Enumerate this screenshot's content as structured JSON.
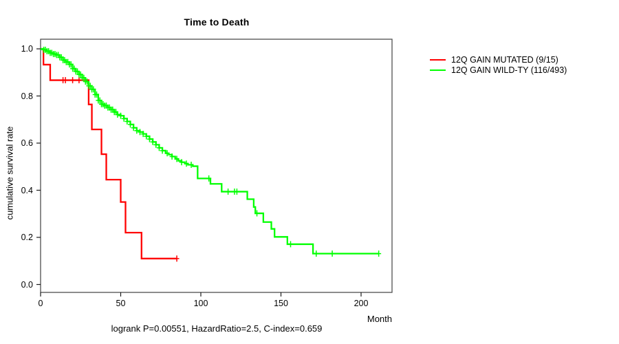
{
  "window": {
    "title": "Time to Death survival plot"
  },
  "header": {
    "title": "Time to Death"
  },
  "axes": {
    "y_label": "cumulative survival rate",
    "x_label": "Month"
  },
  "legend": [
    {
      "label": "12Q GAIN MUTATED (9/15)",
      "color": "#ff0000"
    },
    {
      "label": "12Q GAIN WILD-TY (116/493)",
      "color": "#00ff00"
    }
  ],
  "footer": {
    "stats_line": "logrank P=0.00551, HazardRatio=2.5, C-index=0.659"
  },
  "colors": {
    "mutated": "#ff0000",
    "wildtype": "#00ff00",
    "box": "#4d4d4d",
    "tick": "#1a1a1a",
    "text": "#000000",
    "background": "#ffffff"
  },
  "chart_data": {
    "type": "line",
    "subtype": "kaplan-meier-step",
    "title": "Time to Death",
    "xlabel": "Month",
    "ylabel": "cumulative survival rate",
    "xlim": [
      0,
      220
    ],
    "ylim": [
      0.0,
      1.0
    ],
    "grid": false,
    "legend_position": "right",
    "annotation": "logrank P=0.00551, HazardRatio=2.5, C-index=0.659",
    "x_ticks": [
      {
        "label": "0",
        "month": 0
      },
      {
        "label": "50",
        "month": 50
      },
      {
        "label": "100",
        "month": 100
      },
      {
        "label": "150",
        "month": 150
      },
      {
        "label": "200",
        "month": 200
      }
    ],
    "y_ticks": [
      {
        "label": "0.0",
        "value": 0.0
      },
      {
        "label": "0.2",
        "value": 0.2
      },
      {
        "label": "0.4",
        "value": 0.4
      },
      {
        "label": "0.6",
        "value": 0.6
      },
      {
        "label": "0.8",
        "value": 0.8
      },
      {
        "label": "1.0",
        "value": 1.0
      }
    ],
    "series": [
      {
        "name": "12Q GAIN MUTATED (9/15)",
        "color": "#ff0000",
        "end_month": 85,
        "step_points": [
          [
            0,
            1.0
          ],
          [
            1.8,
            0.933
          ],
          [
            6,
            0.867
          ],
          [
            30,
            0.764
          ],
          [
            32,
            0.658
          ],
          [
            38,
            0.553
          ],
          [
            41,
            0.445
          ],
          [
            50,
            0.35
          ],
          [
            53,
            0.22
          ],
          [
            63,
            0.11
          ]
        ],
        "censor_months": [
          14,
          15.5,
          20,
          24,
          85
        ]
      },
      {
        "name": "12Q GAIN WILD-TY (116/493)",
        "color": "#00ff00",
        "end_month": 211,
        "step_points": [
          [
            0,
            1.0
          ],
          [
            2,
            0.996
          ],
          [
            4,
            0.99
          ],
          [
            6,
            0.983
          ],
          [
            8,
            0.978
          ],
          [
            10,
            0.974
          ],
          [
            12,
            0.964
          ],
          [
            14,
            0.952
          ],
          [
            16,
            0.944
          ],
          [
            18,
            0.934
          ],
          [
            20,
            0.916
          ],
          [
            22,
            0.904
          ],
          [
            24,
            0.891
          ],
          [
            26,
            0.877
          ],
          [
            28,
            0.861
          ],
          [
            30,
            0.843
          ],
          [
            32,
            0.828
          ],
          [
            34,
            0.806
          ],
          [
            36,
            0.781
          ],
          [
            38,
            0.765
          ],
          [
            40,
            0.759
          ],
          [
            42,
            0.751
          ],
          [
            44,
            0.742
          ],
          [
            46,
            0.732
          ],
          [
            48,
            0.721
          ],
          [
            50,
            0.716
          ],
          [
            52,
            0.704
          ],
          [
            54,
            0.692
          ],
          [
            56,
            0.679
          ],
          [
            58,
            0.665
          ],
          [
            60,
            0.653
          ],
          [
            62,
            0.647
          ],
          [
            64,
            0.639
          ],
          [
            66,
            0.629
          ],
          [
            68,
            0.617
          ],
          [
            70,
            0.605
          ],
          [
            72,
            0.593
          ],
          [
            74,
            0.58
          ],
          [
            76,
            0.568
          ],
          [
            78,
            0.557
          ],
          [
            80,
            0.551
          ],
          [
            82,
            0.543
          ],
          [
            84,
            0.533
          ],
          [
            86,
            0.525
          ],
          [
            88,
            0.519
          ],
          [
            90,
            0.513
          ],
          [
            92,
            0.508
          ],
          [
            95,
            0.502
          ],
          [
            98,
            0.45
          ],
          [
            106,
            0.427
          ],
          [
            113,
            0.394
          ],
          [
            129,
            0.362
          ],
          [
            133,
            0.329
          ],
          [
            134,
            0.302
          ],
          [
            139,
            0.265
          ],
          [
            144,
            0.236
          ],
          [
            146,
            0.202
          ],
          [
            154,
            0.171
          ],
          [
            170,
            0.131
          ]
        ],
        "censor_months": [
          2,
          3,
          4,
          5,
          6,
          7,
          8,
          9,
          10,
          11,
          12,
          13,
          14,
          15,
          16,
          17,
          18,
          19,
          20,
          21,
          22,
          23,
          24,
          25,
          26,
          27,
          28,
          29,
          30,
          31,
          32,
          33,
          34,
          35,
          36,
          37,
          38,
          39,
          40,
          41,
          42,
          43,
          44,
          45,
          46,
          47,
          48,
          50,
          52,
          54,
          56,
          58,
          60,
          62,
          64,
          66,
          68,
          70,
          72,
          74,
          76,
          79,
          82,
          85,
          88,
          91,
          94,
          105,
          117,
          121,
          122.5,
          135,
          156,
          172,
          182,
          211
        ]
      }
    ]
  }
}
